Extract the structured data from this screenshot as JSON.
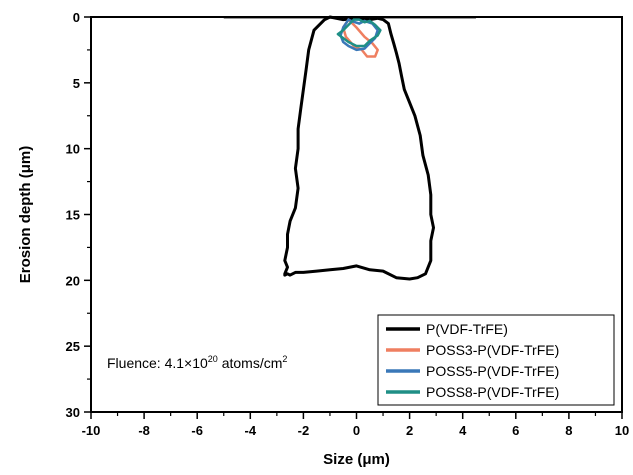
{
  "chart_data": {
    "type": "line",
    "xlabel": "Size (μm)",
    "ylabel": "Erosion depth (μm)",
    "xlim": [
      -10,
      10
    ],
    "ylim": [
      0,
      30
    ],
    "y_inverted": true,
    "xticks": [
      -10,
      -8,
      -6,
      -4,
      -2,
      0,
      2,
      4,
      6,
      8,
      10
    ],
    "yticks": [
      0,
      5,
      10,
      15,
      20,
      25,
      30
    ],
    "grid": false,
    "legend_position": "bottom-right",
    "annotation": {
      "prefix": "Fluence: 4.1×10",
      "exponent": "20",
      "middle": " atoms/cm",
      "unit_exponent": "2"
    },
    "surface_line": {
      "x": [
        -5,
        4.5
      ],
      "y": 0,
      "color": "#999999"
    },
    "series": [
      {
        "name": "P(VDF-TrFE)",
        "color": "#000000",
        "x": [
          -1.2,
          -1.6,
          -1.8,
          -1.9,
          -2.0,
          -2.1,
          -2.2,
          -2.2,
          -2.3,
          -2.2,
          -2.3,
          -2.5,
          -2.6,
          -2.6,
          -2.7,
          -2.6,
          -2.7,
          -2.7,
          -2.6,
          -2.5,
          -2.3,
          -2.0,
          -1.5,
          -1.0,
          -0.5,
          0.0,
          0.5,
          1.0,
          1.5,
          2.0,
          2.3,
          2.6,
          2.8,
          2.8,
          2.9,
          2.8,
          2.8,
          2.7,
          2.5,
          2.4,
          2.2,
          2.0,
          1.8,
          1.7,
          1.6,
          1.5,
          1.4,
          1.3,
          1.2,
          1.0,
          0.8,
          0.5,
          0.0,
          -0.5,
          -1.0,
          -1.2
        ],
        "y": [
          0.2,
          1.0,
          2.5,
          4.0,
          5.5,
          7.0,
          8.5,
          10.0,
          11.5,
          13.0,
          14.5,
          15.5,
          16.5,
          17.5,
          18.5,
          19.0,
          19.5,
          19.6,
          19.5,
          19.6,
          19.4,
          19.4,
          19.3,
          19.2,
          19.1,
          18.9,
          19.2,
          19.3,
          19.8,
          19.9,
          19.8,
          19.5,
          18.5,
          17.0,
          16.0,
          15.0,
          13.5,
          12.0,
          10.5,
          9.0,
          7.5,
          6.5,
          5.5,
          4.5,
          3.5,
          2.7,
          2.0,
          1.3,
          0.5,
          0.2,
          0.1,
          0.2,
          0.1,
          0.2,
          0.0,
          0.2
        ]
      },
      {
        "name": "POSS3-P(VDF-TrFE)",
        "color": "#ef7f60",
        "x": [
          -0.3,
          0.0,
          0.3,
          0.6,
          0.8,
          0.7,
          0.4,
          0.2,
          -0.1,
          -0.4,
          -0.5,
          -0.3
        ],
        "y": [
          0.2,
          0.8,
          1.5,
          2.0,
          2.5,
          3.0,
          3.0,
          2.5,
          2.2,
          1.5,
          0.8,
          0.2
        ]
      },
      {
        "name": "POSS5-P(VDF-TrFE)",
        "color": "#3a78b8",
        "x": [
          -0.3,
          -0.5,
          -0.6,
          -0.5,
          -0.3,
          0.0,
          0.3,
          0.5,
          0.7,
          0.8,
          0.6,
          0.3,
          0.1,
          -0.2,
          -0.3
        ],
        "y": [
          0.2,
          0.8,
          1.4,
          1.9,
          2.2,
          2.5,
          2.4,
          2.0,
          1.6,
          1.0,
          0.5,
          0.3,
          0.5,
          0.3,
          0.2
        ]
      },
      {
        "name": "POSS8-P(VDF-TrFE)",
        "color": "#1f8f86",
        "x": [
          -0.1,
          -0.3,
          -0.5,
          -0.7,
          -0.5,
          -0.3,
          0.0,
          0.3,
          0.5,
          0.8,
          0.9,
          0.7,
          0.5,
          0.3,
          0.1,
          -0.1
        ],
        "y": [
          0.2,
          0.6,
          1.0,
          1.3,
          1.6,
          1.9,
          2.2,
          2.2,
          1.8,
          1.4,
          1.0,
          0.6,
          0.3,
          0.4,
          0.2,
          0.2
        ]
      }
    ]
  }
}
